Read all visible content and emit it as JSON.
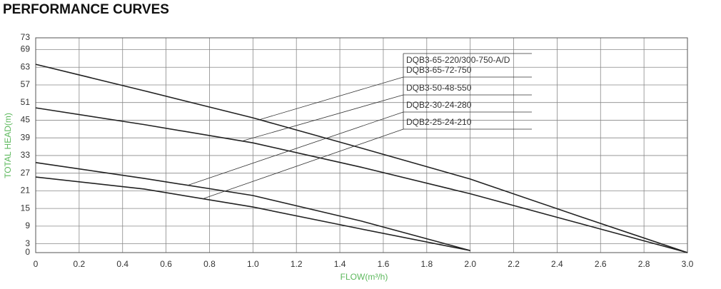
{
  "chart_data": {
    "type": "line",
    "title": "PERFORMANCE CURVES",
    "x_label": "FLOW(m³/h)",
    "y_label": "TOTAL HEAD(m)",
    "legend_title": "DQB3-65-220/300-750-A/D",
    "x": [
      0,
      0.5,
      1,
      1.5,
      2,
      2.5,
      3
    ],
    "series": [
      {
        "name": "DQB3-65-72-750",
        "color": "#222222",
        "values": [
          64,
          55,
          45.8,
          35.5,
          25,
          12.4,
          0
        ]
      },
      {
        "name": "DQB3-50-48-550",
        "color": "#222222",
        "values": [
          49.2,
          43.5,
          37.3,
          29,
          20,
          10,
          0
        ]
      },
      {
        "name": "DQB2-30-24-280",
        "color": "#222222",
        "values": [
          30.6,
          25.2,
          19.4,
          10.7,
          0.7,
          null,
          null
        ]
      },
      {
        "name": "DQB2-25-24-210",
        "color": "#222222",
        "values": [
          25.7,
          21.6,
          15.5,
          8,
          0.7,
          null,
          null
        ]
      }
    ],
    "xlim": [
      0,
      3
    ],
    "xticks": [
      0,
      0.2,
      0.4,
      0.6,
      0.8,
      {
        "value": 1,
        "label": "1.0"
      },
      1.2,
      1.4,
      1.6,
      1.8,
      {
        "value": 2,
        "label": "2.0"
      },
      2.2,
      2.4,
      2.6,
      2.8,
      {
        "value": 3,
        "label": "3.0"
      }
    ],
    "ylim": [
      0,
      73
    ],
    "yticks": [
      0,
      3,
      9,
      15,
      21,
      27,
      33,
      39,
      45,
      51,
      57,
      63,
      69,
      73
    ],
    "grid": true
  }
}
